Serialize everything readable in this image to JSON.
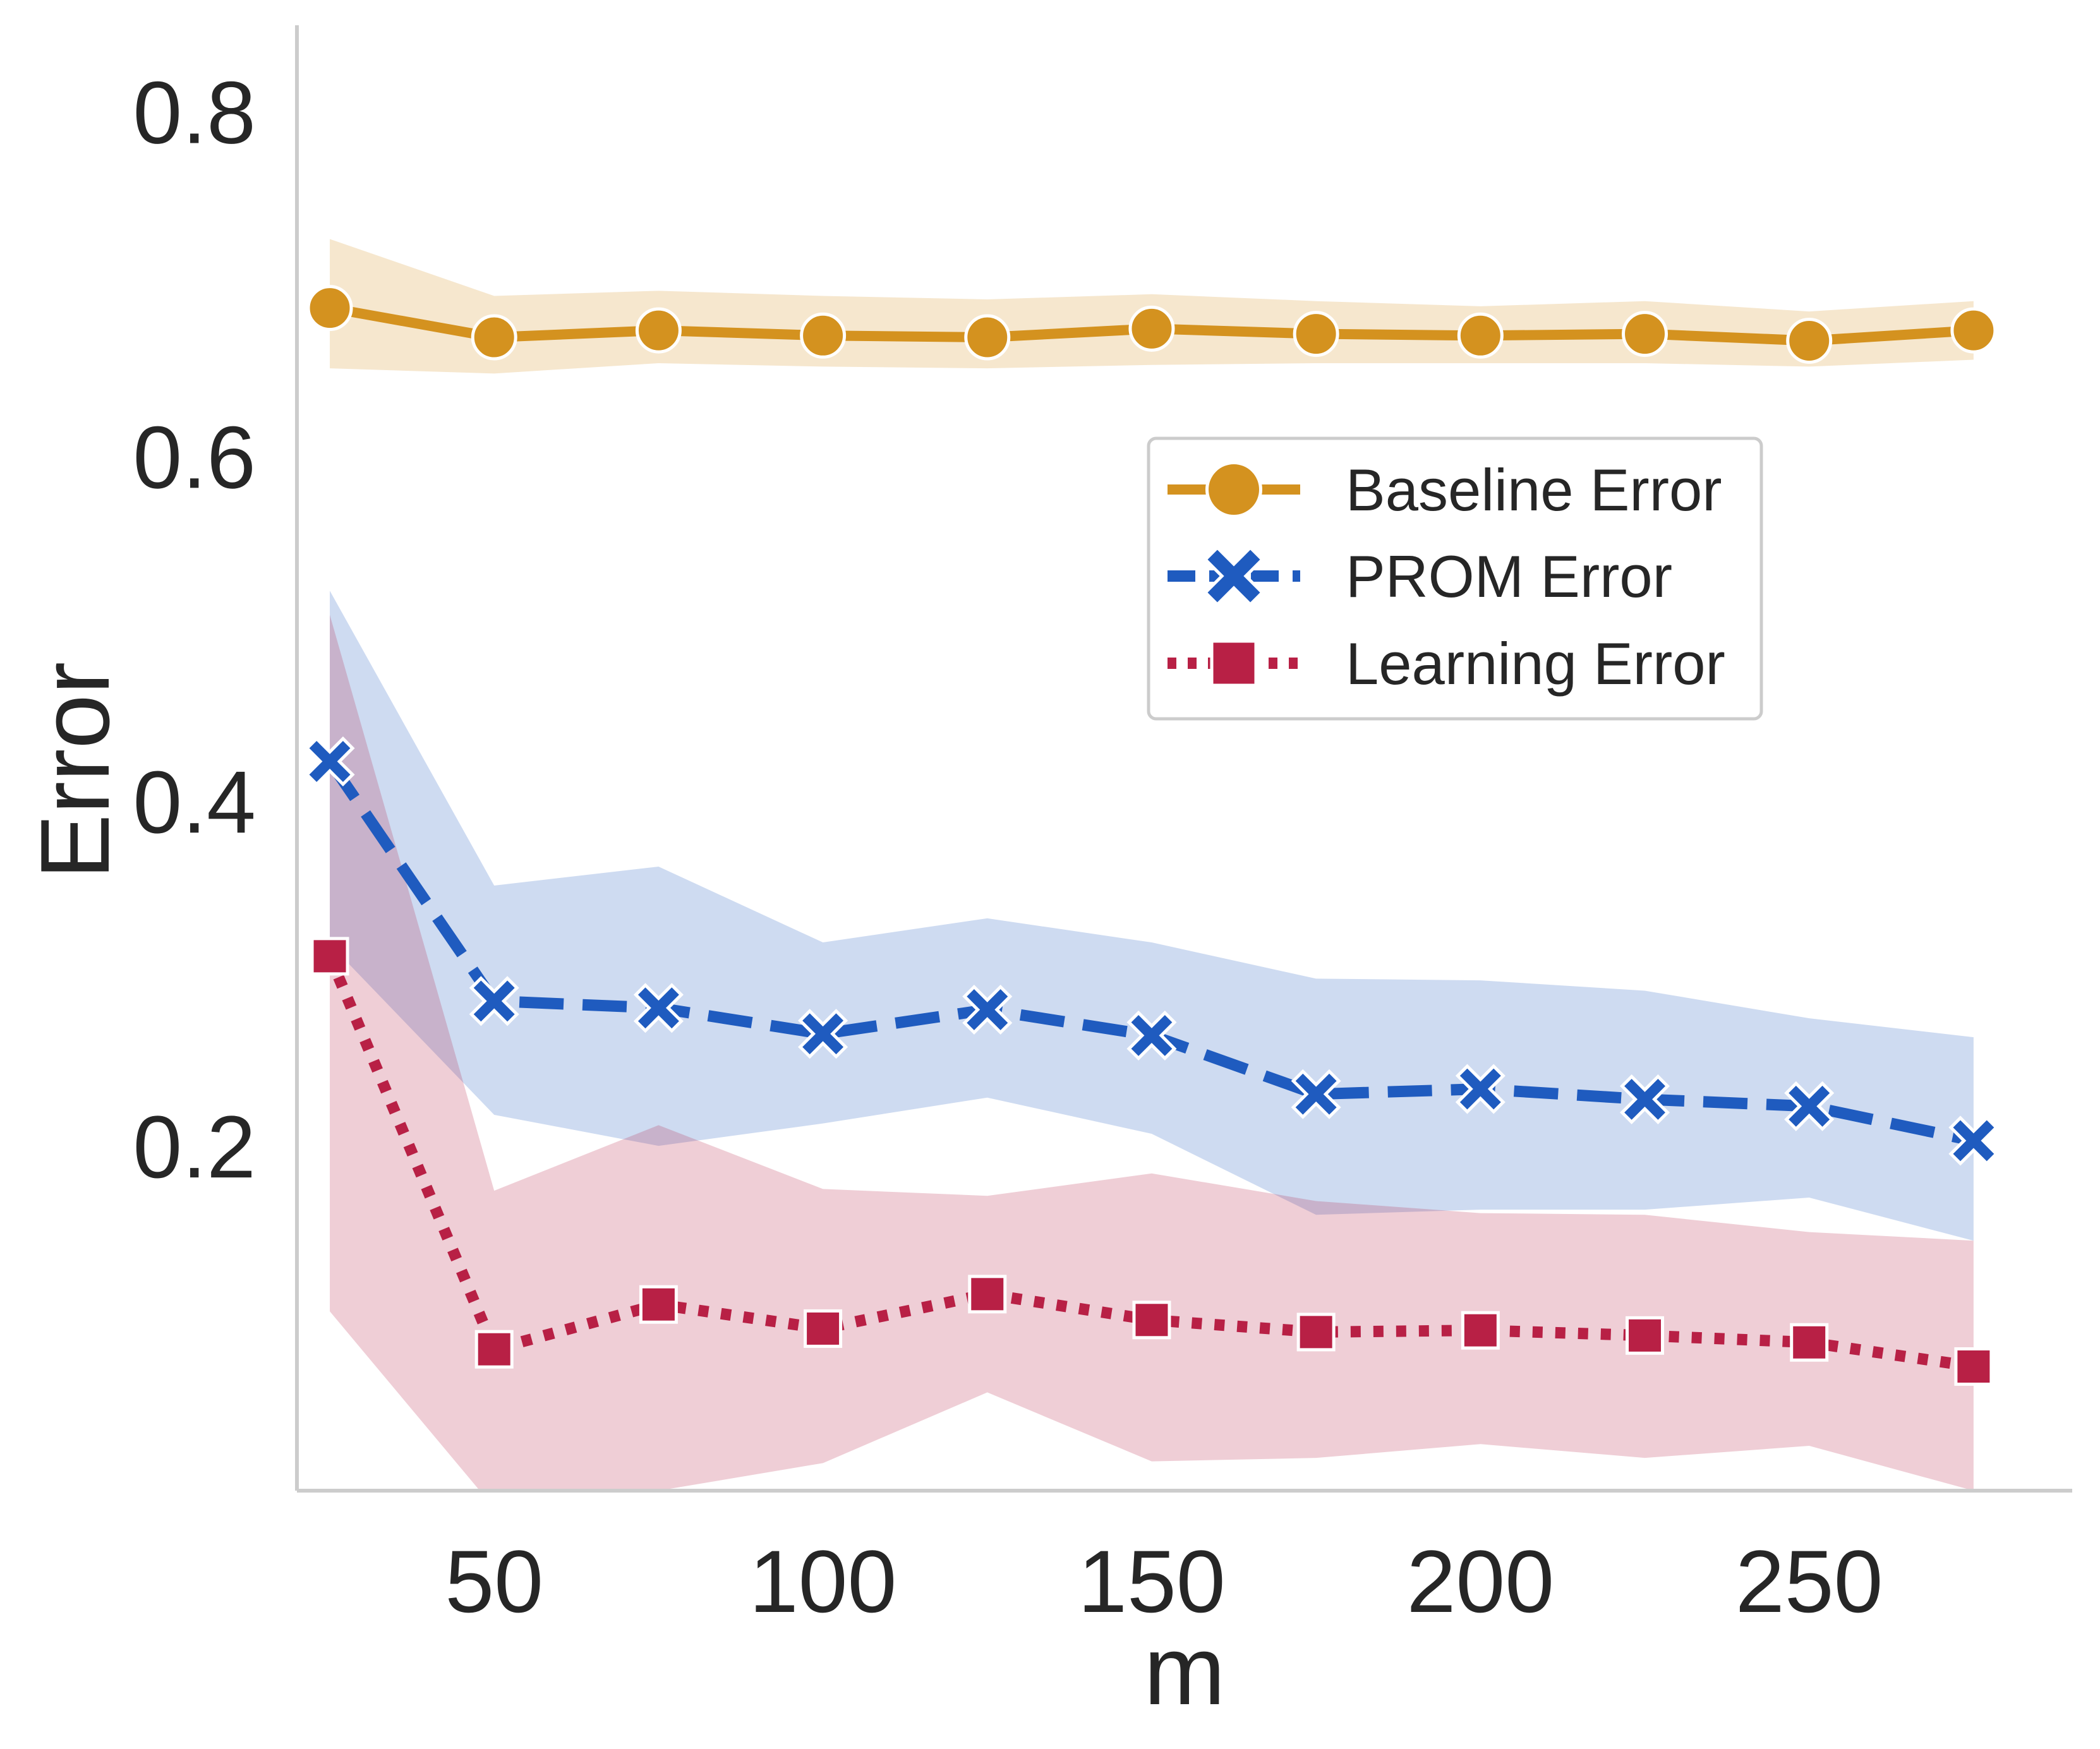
{
  "chart_data": {
    "type": "line",
    "title": "",
    "xlabel": "m",
    "ylabel": "Error",
    "xlim": [
      20,
      290
    ],
    "ylim": [
      0.0,
      0.85
    ],
    "x_ticks": [
      50,
      100,
      150,
      200,
      250
    ],
    "x_tick_labels": [
      "50",
      "100",
      "150",
      "200",
      "250"
    ],
    "y_ticks": [
      0.2,
      0.4,
      0.6,
      0.8
    ],
    "y_tick_labels": [
      "0.2",
      "0.4",
      "0.6",
      "0.8"
    ],
    "grid": false,
    "legend_position": "upper-right",
    "x": [
      25,
      50,
      75,
      100,
      125,
      150,
      175,
      200,
      225,
      250,
      275
    ],
    "series": [
      {
        "name": "Baseline Error",
        "color": "#d4921f",
        "line_style": "solid",
        "marker": "circle",
        "values": [
          0.686,
          0.669,
          0.673,
          0.67,
          0.669,
          0.674,
          0.671,
          0.67,
          0.671,
          0.667,
          0.673
        ],
        "band_upper": [
          0.726,
          0.693,
          0.696,
          0.693,
          0.691,
          0.694,
          0.69,
          0.687,
          0.69,
          0.684,
          0.69
        ],
        "band_lower": [
          0.651,
          0.648,
          0.654,
          0.652,
          0.651,
          0.653,
          0.654,
          0.654,
          0.654,
          0.652,
          0.656
        ]
      },
      {
        "name": "PROM Error",
        "color": "#1f5bbf",
        "line_style": "dashed",
        "marker": "x",
        "values": [
          0.423,
          0.284,
          0.28,
          0.265,
          0.279,
          0.264,
          0.23,
          0.233,
          0.227,
          0.223,
          0.203
        ],
        "band_upper": [
          0.522,
          0.351,
          0.362,
          0.318,
          0.332,
          0.318,
          0.297,
          0.296,
          0.29,
          0.274,
          0.263
        ],
        "band_lower": [
          0.317,
          0.218,
          0.2,
          0.213,
          0.228,
          0.207,
          0.16,
          0.163,
          0.163,
          0.17,
          0.145
        ]
      },
      {
        "name": "Learning Error",
        "color": "#b82045",
        "line_style": "dotted",
        "marker": "square",
        "values": [
          0.31,
          0.082,
          0.108,
          0.094,
          0.114,
          0.099,
          0.092,
          0.093,
          0.09,
          0.086,
          0.072
        ],
        "band_upper": [
          0.508,
          0.174,
          0.212,
          0.175,
          0.171,
          0.184,
          0.168,
          0.161,
          0.16,
          0.15,
          0.145
        ],
        "band_lower": [
          0.104,
          -0.01,
          0.0,
          0.016,
          0.057,
          0.017,
          0.019,
          0.027,
          0.019,
          0.026,
          0.0
        ]
      }
    ]
  }
}
